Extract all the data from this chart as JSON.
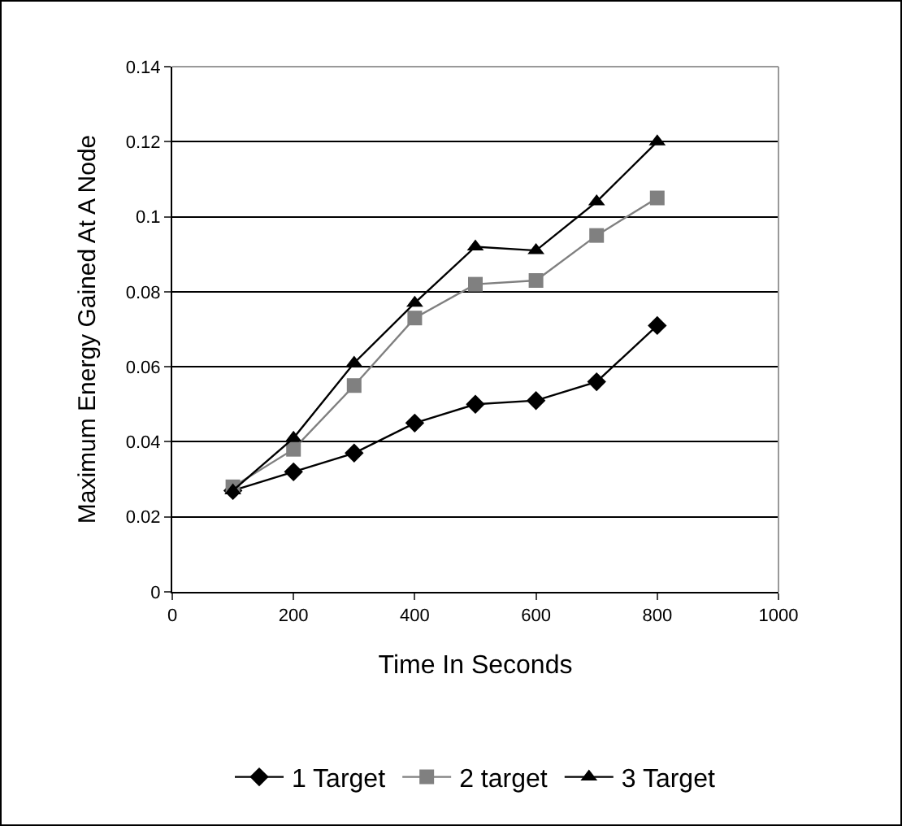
{
  "chart_data": {
    "type": "line",
    "xlabel": "Time In Seconds",
    "ylabel": "Maximum Energy Gained At A Node",
    "x": [
      100,
      200,
      300,
      400,
      500,
      600,
      700,
      800
    ],
    "series": [
      {
        "name": "1 Target",
        "color": "#000000",
        "marker": "diamond",
        "values": [
          0.027,
          0.032,
          0.037,
          0.045,
          0.05,
          0.051,
          0.056,
          0.071
        ]
      },
      {
        "name": "2 target",
        "color": "#808080",
        "marker": "square",
        "values": [
          0.028,
          0.038,
          0.055,
          0.073,
          0.082,
          0.083,
          0.095,
          0.105
        ]
      },
      {
        "name": "3 Target",
        "color": "#000000",
        "marker": "triangle",
        "values": [
          0.027,
          0.041,
          0.061,
          0.077,
          0.092,
          0.091,
          0.104,
          0.12
        ]
      }
    ],
    "xlim": [
      0,
      1000
    ],
    "xticks": [
      0,
      200,
      400,
      600,
      800,
      1000
    ],
    "ylim": [
      0,
      0.14
    ],
    "yticks": [
      0,
      0.02,
      0.04,
      0.06,
      0.08,
      0.1,
      0.12,
      0.14
    ],
    "grid": "y",
    "legend": "bottom",
    "line_style": "solid"
  }
}
